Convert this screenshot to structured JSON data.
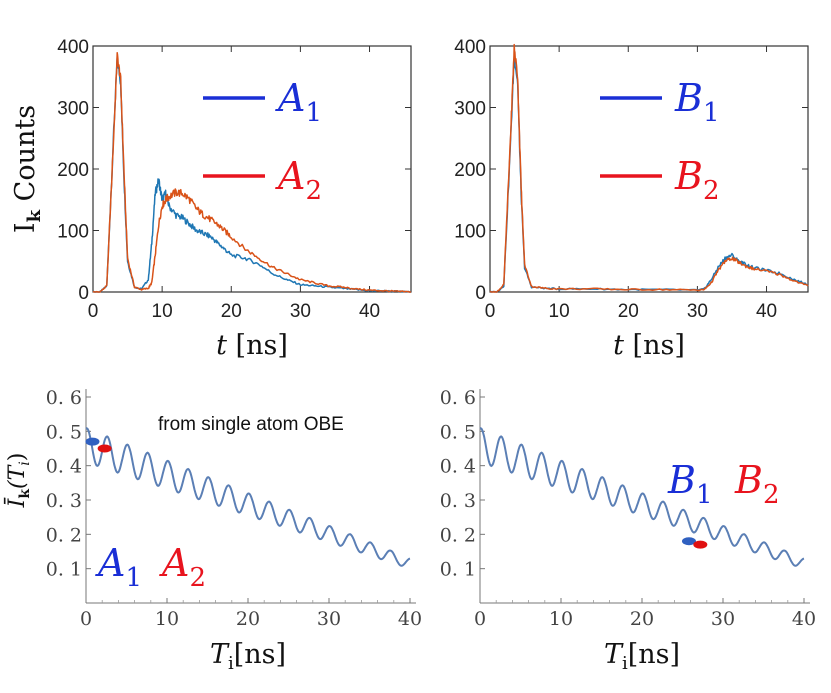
{
  "chart_data": [
    {
      "panel": "top-left",
      "type": "line",
      "xlabel": "t [ns]",
      "ylabel": "I_k Counts",
      "xlim": [
        0,
        46
      ],
      "ylim": [
        0,
        400
      ],
      "x_ticks": [
        0,
        10,
        20,
        30,
        40
      ],
      "y_ticks": [
        0,
        100,
        200,
        300,
        400
      ],
      "x": [
        0,
        1,
        2,
        3,
        3.5,
        4,
        4.5,
        5,
        6,
        7,
        8,
        8.5,
        9,
        9.5,
        10,
        10.5,
        11,
        12,
        13,
        14,
        15,
        16,
        17,
        18,
        19,
        20,
        22,
        24,
        26,
        28,
        30,
        32,
        34,
        36,
        38,
        40,
        42,
        44,
        46
      ],
      "series": [
        {
          "name": "A_1",
          "legend_main": "A",
          "legend_sub": "1",
          "color": "#1f77b4",
          "legend_color": "#1a2fd6",
          "values": [
            0,
            0,
            10,
            260,
            380,
            340,
            180,
            50,
            8,
            5,
            20,
            80,
            160,
            182,
            150,
            160,
            140,
            125,
            120,
            110,
            100,
            95,
            90,
            80,
            70,
            60,
            55,
            45,
            30,
            20,
            12,
            10,
            8,
            6,
            4,
            2,
            2,
            1,
            0
          ]
        },
        {
          "name": "A_2",
          "legend_main": "A",
          "legend_sub": "2",
          "color": "#d95319",
          "legend_color": "#e8141e",
          "values": [
            0,
            0,
            10,
            255,
            385,
            345,
            190,
            55,
            8,
            4,
            6,
            15,
            60,
            110,
            140,
            150,
            155,
            162,
            160,
            150,
            135,
            125,
            118,
            110,
            100,
            90,
            70,
            55,
            40,
            30,
            20,
            15,
            10,
            8,
            5,
            3,
            2,
            1,
            0
          ]
        }
      ]
    },
    {
      "panel": "top-right",
      "type": "line",
      "xlabel": "t [ns]",
      "ylabel": "",
      "xlim": [
        0,
        46
      ],
      "ylim": [
        0,
        400
      ],
      "x_ticks": [
        0,
        10,
        20,
        30,
        40
      ],
      "y_ticks": [
        0,
        100,
        200,
        300,
        400
      ],
      "x": [
        0,
        1,
        2,
        3,
        3.5,
        4,
        4.5,
        5,
        6,
        8,
        10,
        15,
        20,
        25,
        30,
        31,
        32,
        33,
        34,
        35,
        36,
        37,
        38,
        40,
        42,
        44,
        46
      ],
      "series": [
        {
          "name": "B_1",
          "legend_main": "B",
          "legend_sub": "1",
          "color": "#1f77b4",
          "legend_color": "#1a2fd6",
          "values": [
            0,
            0,
            10,
            250,
            385,
            340,
            160,
            40,
            8,
            6,
            5,
            5,
            4,
            4,
            3,
            5,
            20,
            40,
            55,
            60,
            50,
            45,
            40,
            35,
            30,
            20,
            12
          ]
        },
        {
          "name": "B_2",
          "legend_main": "B",
          "legend_sub": "2",
          "color": "#d95319",
          "legend_color": "#e8141e",
          "values": [
            0,
            0,
            12,
            260,
            398,
            350,
            170,
            45,
            9,
            6,
            5,
            5,
            4,
            4,
            3,
            4,
            15,
            35,
            50,
            55,
            48,
            42,
            38,
            34,
            28,
            18,
            10
          ]
        }
      ]
    },
    {
      "panel": "bottom-left",
      "type": "line",
      "xlabel": "T_i[ns]",
      "ylabel": "Ī_k(T_i)",
      "xlim": [
        0,
        40
      ],
      "ylim": [
        0,
        0.6
      ],
      "x_ticks": [
        0,
        10,
        20,
        30,
        40
      ],
      "y_ticks": [
        0.1,
        0.2,
        0.3,
        0.4,
        0.5,
        0.6
      ],
      "y_tick_labels": [
        "0. 1",
        "0. 2",
        "0. 3",
        "0. 4",
        "0. 5",
        "0. 6"
      ],
      "curve": {
        "start": 0.46,
        "end": 0.115,
        "amplitude_start": 0.05,
        "amplitude_end": 0.015,
        "period": 2.5,
        "color": "#5b7fb5"
      },
      "markers": [
        {
          "name": "A_1",
          "x": 0.8,
          "y": 0.47,
          "color": "#3060c0"
        },
        {
          "name": "A_2",
          "x": 2.3,
          "y": 0.45,
          "color": "#e01010"
        }
      ],
      "annotation": "from single atom OBE",
      "legend": [
        {
          "main": "A",
          "sub": "1",
          "color": "#1a2fd6"
        },
        {
          "main": "A",
          "sub": "2",
          "color": "#e8141e"
        }
      ]
    },
    {
      "panel": "bottom-right",
      "type": "line",
      "xlabel": "T_i[ns]",
      "ylabel": "",
      "xlim": [
        0,
        40
      ],
      "ylim": [
        0,
        0.6
      ],
      "x_ticks": [
        0,
        10,
        20,
        30,
        40
      ],
      "y_ticks": [
        0.1,
        0.2,
        0.3,
        0.4,
        0.5,
        0.6
      ],
      "y_tick_labels": [
        "0. 1",
        "0. 2",
        "0. 3",
        "0. 4",
        "0. 5",
        "0. 6"
      ],
      "curve": {
        "start": 0.46,
        "end": 0.115,
        "amplitude_start": 0.05,
        "amplitude_end": 0.015,
        "period": 2.5,
        "color": "#5b7fb5"
      },
      "markers": [
        {
          "name": "B_1",
          "x": 25.8,
          "y": 0.18,
          "color": "#3060c0"
        },
        {
          "name": "B_2",
          "x": 27.2,
          "y": 0.17,
          "color": "#e01010"
        }
      ],
      "legend": [
        {
          "main": "B",
          "sub": "1",
          "color": "#1a2fd6"
        },
        {
          "main": "B",
          "sub": "2",
          "color": "#e8141e"
        }
      ]
    }
  ]
}
